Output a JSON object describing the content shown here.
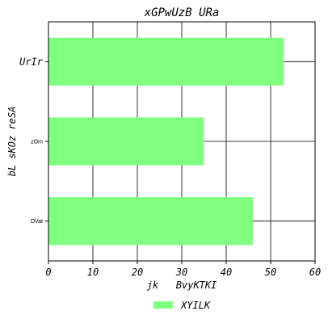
{
  "chart_data": {
    "type": "bar",
    "orientation": "horizontal",
    "title": "xGPwUzB  URa",
    "xlabel": "jk   BvyKTKI",
    "ylabel": "bL sKOz reSA",
    "categories": [
      "DVat",
      "zOm",
      "UrIr"
    ],
    "series": [
      {
        "name": "XYILK",
        "values": [
          46,
          35,
          53
        ],
        "color": "#80ff80"
      }
    ],
    "xlim": [
      0,
      60
    ],
    "xticks": [
      0,
      10,
      20,
      30,
      40,
      50,
      60
    ],
    "grid": true,
    "legend_position": "bottom-center"
  }
}
